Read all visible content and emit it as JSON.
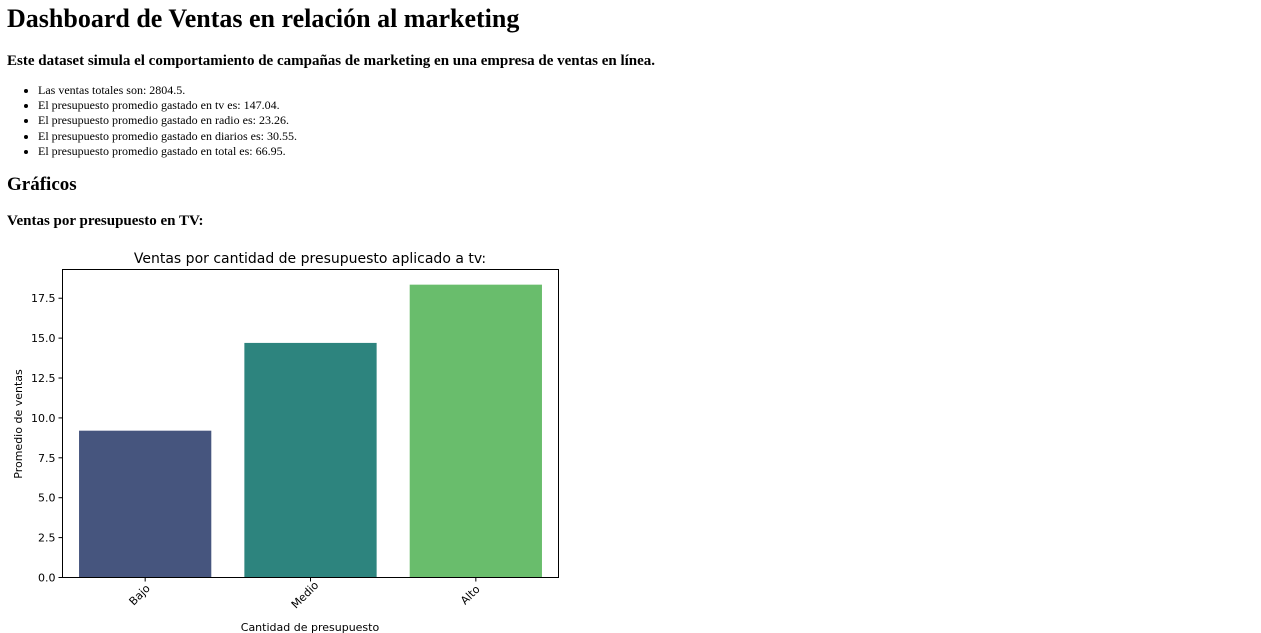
{
  "page": {
    "title": "Dashboard de Ventas en relación al marketing",
    "subtitle": "Este dataset simula el comportamiento de campañas de marketing en una empresa de ventas en línea.",
    "stats": [
      "Las ventas totales son: 2804.5.",
      "El presupuesto promedio gastado en tv es: 147.04.",
      "El presupuesto promedio gastado en radio es: 23.26.",
      "El presupuesto promedio gastado en diarios es: 30.55.",
      "El presupuesto promedio gastado en total es: 66.95."
    ],
    "section_title": "Gráficos",
    "chart_heading": "Ventas por presupuesto en TV:"
  },
  "chart_data": {
    "type": "bar",
    "title": "Ventas por cantidad de presupuesto aplicado a tv:",
    "xlabel": "Cantidad de presupuesto",
    "ylabel": "Promedio de ventas",
    "categories": [
      "Bajo",
      "Medio",
      "Alto"
    ],
    "values": [
      9.2,
      14.7,
      18.35
    ],
    "colors": [
      "#46557e",
      "#2d847e",
      "#69bd6c"
    ],
    "ylim": [
      0,
      19.3
    ],
    "yticks": [
      0.0,
      2.5,
      5.0,
      7.5,
      10.0,
      12.5,
      15.0,
      17.5
    ],
    "ytick_labels": [
      "0.0",
      "2.5",
      "5.0",
      "7.5",
      "10.0",
      "12.5",
      "15.0",
      "17.5"
    ],
    "grid": false,
    "legend": "none"
  }
}
